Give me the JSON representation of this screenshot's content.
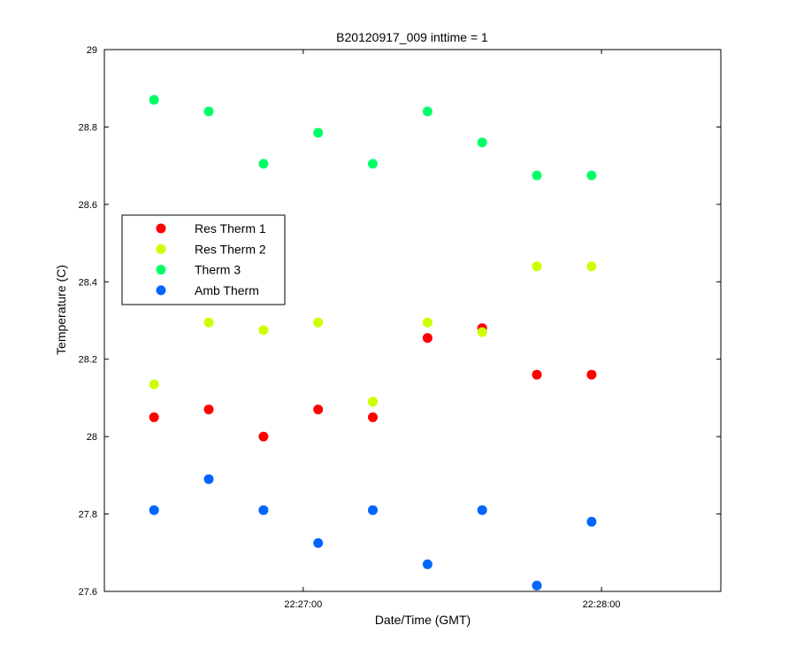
{
  "chart_data": {
    "type": "scatter",
    "title": "B20120917_009 inttime = 1",
    "xlabel": "Date/Time (GMT)",
    "ylabel": "Temperature (C)",
    "x_axis": {
      "range": [
        "22:26:20",
        "22:28:24"
      ],
      "ticks": [
        "22:27:00",
        "22:28:00"
      ]
    },
    "y_axis": {
      "range": [
        27.6,
        29
      ],
      "ticks": [
        "27.6",
        "27.8",
        "28",
        "28.2",
        "28.4",
        "28.6",
        "28.8",
        "29"
      ]
    },
    "grid": false,
    "legend_position": "left",
    "x": [
      "22:26:30",
      "22:26:41",
      "22:26:52",
      "22:27:03",
      "22:27:14",
      "22:27:25",
      "22:27:36",
      "22:27:47",
      "22:27:58"
    ],
    "series": [
      {
        "name": "Res Therm 1",
        "color": "#ff0000",
        "values": [
          28.05,
          28.07,
          28.0,
          28.07,
          28.05,
          28.255,
          28.28,
          28.16,
          28.16
        ]
      },
      {
        "name": "Res Therm 2",
        "color": "#ccff00",
        "values": [
          28.135,
          28.295,
          28.275,
          28.295,
          28.09,
          28.295,
          28.27,
          28.44,
          28.44
        ]
      },
      {
        "name": "Therm 3",
        "color": "#00ff66",
        "values": [
          28.87,
          28.84,
          28.705,
          28.785,
          28.705,
          28.84,
          28.76,
          28.675,
          28.675
        ]
      },
      {
        "name": "Amb Therm",
        "color": "#0066ff",
        "values": [
          27.81,
          27.89,
          27.81,
          27.725,
          27.81,
          27.67,
          27.81,
          27.615,
          27.78
        ]
      }
    ]
  }
}
